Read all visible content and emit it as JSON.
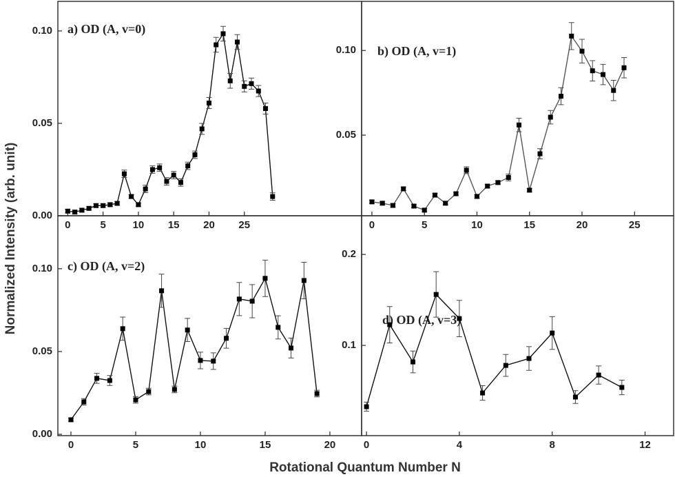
{
  "ylabel": "Normalized Intensity (arb. unit)",
  "xlabel": "Rotational Quantum Number N",
  "chart_data": [
    {
      "type": "line",
      "title": "a) OD (A, v=0)",
      "color": "#111111",
      "x": [
        0,
        1,
        2,
        3,
        4,
        5,
        6,
        7,
        8,
        9,
        10,
        11,
        12,
        13,
        14,
        15,
        16,
        17,
        18,
        19,
        20,
        21,
        22,
        23,
        24,
        25,
        26,
        27,
        28,
        29
      ],
      "values": [
        0.0025,
        0.002,
        0.003,
        0.004,
        0.0055,
        0.0055,
        0.006,
        0.0067,
        0.0227,
        0.0104,
        0.006,
        0.0145,
        0.025,
        0.026,
        0.0186,
        0.022,
        0.018,
        0.027,
        0.033,
        0.047,
        0.061,
        0.0925,
        0.0985,
        0.073,
        0.094,
        0.07,
        0.0715,
        0.0675,
        0.058,
        0.0104
      ],
      "errors": [
        0.001,
        0.001,
        0.001,
        0.001,
        0.001,
        0.001,
        0.001,
        0.001,
        0.002,
        0.001,
        0.001,
        0.002,
        0.002,
        0.002,
        0.002,
        0.002,
        0.002,
        0.002,
        0.002,
        0.003,
        0.003,
        0.004,
        0.004,
        0.004,
        0.004,
        0.003,
        0.003,
        0.003,
        0.003,
        0.002
      ],
      "xlim": [
        -1.4,
        41.6
      ],
      "ylim": [
        0,
        0.116
      ],
      "xticks": [
        0,
        5,
        10,
        15,
        20,
        25
      ],
      "yticks": [
        {
          "value": 0,
          "label": "0.00"
        },
        0.05,
        {
          "value": 0.1,
          "label": "0.10"
        }
      ]
    },
    {
      "type": "line",
      "title": "b) OD (A, v=1)",
      "color": "#555555",
      "x": [
        0,
        1,
        2,
        3,
        4,
        5,
        6,
        7,
        8,
        9,
        10,
        11,
        12,
        13,
        14,
        15,
        16,
        17,
        18,
        19,
        20,
        21,
        22,
        23,
        24
      ],
      "values": [
        0.0106,
        0.0098,
        0.0085,
        0.0183,
        0.0081,
        0.0057,
        0.0146,
        0.0098,
        0.0154,
        0.0293,
        0.0138,
        0.0199,
        0.022,
        0.025,
        0.056,
        0.0175,
        0.039,
        0.0606,
        0.073,
        0.1085,
        0.0996,
        0.088,
        0.0858,
        0.0764,
        0.0898
      ],
      "errors": [
        0.001,
        0.001,
        0.001,
        0.001,
        0.001,
        0.001,
        0.001,
        0.001,
        0.001,
        0.002,
        0.001,
        0.001,
        0.001,
        0.002,
        0.004,
        0.001,
        0.003,
        0.004,
        0.005,
        0.008,
        0.007,
        0.006,
        0.006,
        0.006,
        0.006
      ],
      "xlim": [
        -0.98,
        28.72
      ],
      "ylim": [
        0.0024,
        0.129
      ],
      "xticks": [
        0,
        5,
        10,
        15,
        20,
        25
      ],
      "yticks": [
        0.05,
        {
          "value": 0.1,
          "label": "0.10"
        }
      ]
    },
    {
      "type": "line",
      "title": "c) OD (A, v=2)",
      "color": "#111111",
      "x": [
        0,
        1,
        2,
        3,
        4,
        5,
        6,
        7,
        8,
        9,
        10,
        11,
        12,
        13,
        14,
        15,
        16,
        17,
        18,
        19
      ],
      "values": [
        0.0088,
        0.0196,
        0.0338,
        0.0325,
        0.0638,
        0.0208,
        0.0258,
        0.0867,
        0.0271,
        0.063,
        0.0446,
        0.0442,
        0.058,
        0.0817,
        0.0804,
        0.0942,
        0.0646,
        0.0521,
        0.0929,
        0.0246
      ],
      "errors": [
        0.001,
        0.002,
        0.003,
        0.003,
        0.007,
        0.002,
        0.002,
        0.01,
        0.002,
        0.007,
        0.005,
        0.005,
        0.006,
        0.01,
        0.01,
        0.011,
        0.007,
        0.006,
        0.011,
        0.002
      ],
      "xlim": [
        -1.01,
        22.45
      ],
      "ylim": [
        -0.0008,
        0.132
      ],
      "xticks": [
        0,
        5,
        10,
        15,
        20
      ],
      "yticks": [
        {
          "value": 0,
          "label": "0.00"
        },
        0.05,
        {
          "value": 0.1,
          "label": "0.10"
        }
      ]
    },
    {
      "type": "line",
      "title": "d) OD (A, v=3)",
      "color": "#111111",
      "x": [
        0,
        1,
        2,
        3,
        4,
        5,
        6,
        7,
        8,
        9,
        10,
        11
      ],
      "values": [
        0.0326,
        0.1227,
        0.0818,
        0.156,
        0.1295,
        0.0477,
        0.078,
        0.0856,
        0.1136,
        0.0432,
        0.0674,
        0.0538
      ],
      "errors": [
        0.005,
        0.02,
        0.012,
        0.025,
        0.02,
        0.008,
        0.012,
        0.013,
        0.018,
        0.007,
        0.01,
        0.008
      ],
      "xlim": [
        -0.21,
        13.23
      ],
      "ylim": [
        0.0008,
        0.2425
      ],
      "xticks": [
        0,
        4,
        8,
        12
      ],
      "yticks": [
        0.1,
        0.2
      ]
    }
  ]
}
